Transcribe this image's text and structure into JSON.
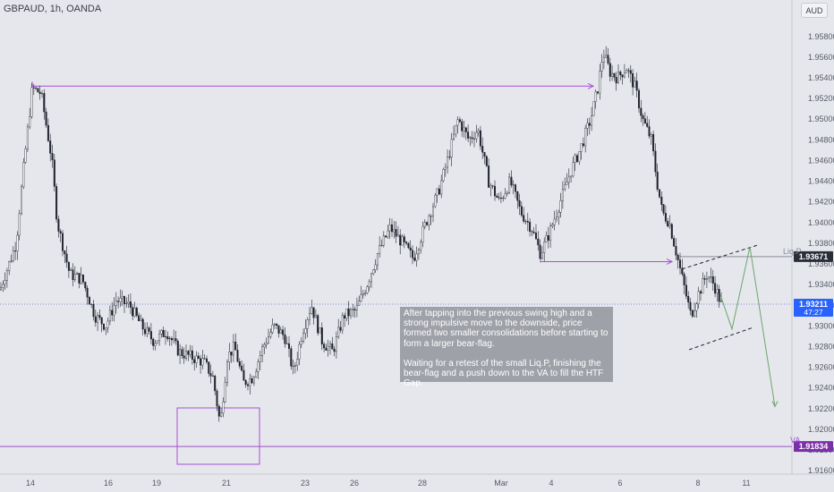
{
  "header": {
    "symbol": "GBPAUD, 1h, OANDA",
    "currency": "AUD"
  },
  "annotation": {
    "text": "After tapping into the previous swing  high and  a strong impulsive move to the downside, price formed two smaller consolidations before starting to form a larger bear-flag.\n\nWaiting for a retest of the small Liq.P, finishing the bear-flag and a push down to the VA to fill the  HTF Gap."
  },
  "labels": {
    "liq": "Liq.P",
    "va": "VA"
  },
  "chart_data": {
    "type": "candlestick",
    "y_axis": {
      "range": [
        1.913,
        1.961
      ],
      "ticks": [
        "1.95800",
        "1.95600",
        "1.95400",
        "1.95200",
        "1.95000",
        "1.94800",
        "1.94600",
        "1.94400",
        "1.94200",
        "1.94000",
        "1.93800",
        "1.93600",
        "1.93400",
        "1.93200",
        "1.93000",
        "1.92800",
        "1.92600",
        "1.92400",
        "1.92200",
        "1.92000",
        "1.91800",
        "1.91600"
      ]
    },
    "x_axis": {
      "ticks": [
        "14",
        "16",
        "19",
        "21",
        "23",
        "26",
        "28",
        "Mar",
        "4",
        "6",
        "8",
        "11"
      ]
    },
    "price_badges": [
      {
        "label": "1.93671",
        "value": 1.93671,
        "color": "#2a2e39"
      },
      {
        "label": "1.93211",
        "sub": "47:27",
        "value": 1.93211,
        "color": "#2962ff"
      },
      {
        "label": "1.91834",
        "value": 1.91834,
        "color": "#7b2fa8"
      }
    ],
    "levels": [
      {
        "name": "previous swing high",
        "value": 1.9532
      },
      {
        "name": "Liq.P",
        "value": 1.93671
      },
      {
        "name": "VA",
        "value": 1.91834
      },
      {
        "name": "current price",
        "value": 1.93211
      }
    ],
    "path": [
      [
        0,
        1.9335
      ],
      [
        18,
        1.938
      ],
      [
        26,
        1.945
      ],
      [
        36,
        1.953
      ],
      [
        46,
        1.9525
      ],
      [
        58,
        1.946
      ],
      [
        64,
        1.94
      ],
      [
        78,
        1.935
      ],
      [
        92,
        1.9345
      ],
      [
        106,
        1.931
      ],
      [
        118,
        1.93
      ],
      [
        130,
        1.9325
      ],
      [
        145,
        1.932
      ],
      [
        158,
        1.93
      ],
      [
        172,
        1.9285
      ],
      [
        186,
        1.9295
      ],
      [
        200,
        1.9275
      ],
      [
        214,
        1.927
      ],
      [
        228,
        1.9265
      ],
      [
        238,
        1.925
      ],
      [
        246,
        1.9205
      ],
      [
        254,
        1.927
      ],
      [
        262,
        1.928
      ],
      [
        272,
        1.9245
      ],
      [
        282,
        1.925
      ],
      [
        294,
        1.928
      ],
      [
        306,
        1.93
      ],
      [
        318,
        1.929
      ],
      [
        328,
        1.9255
      ],
      [
        338,
        1.9295
      ],
      [
        348,
        1.932
      ],
      [
        360,
        1.9285
      ],
      [
        372,
        1.9275
      ],
      [
        384,
        1.931
      ],
      [
        398,
        1.9315
      ],
      [
        410,
        1.934
      ],
      [
        422,
        1.937
      ],
      [
        436,
        1.9395
      ],
      [
        450,
        1.938
      ],
      [
        462,
        1.9365
      ],
      [
        476,
        1.94
      ],
      [
        490,
        1.943
      ],
      [
        500,
        1.946
      ],
      [
        512,
        1.95
      ],
      [
        524,
        1.948
      ],
      [
        534,
        1.949
      ],
      [
        546,
        1.944
      ],
      [
        558,
        1.942
      ],
      [
        570,
        1.944
      ],
      [
        582,
        1.941
      ],
      [
        594,
        1.9395
      ],
      [
        604,
        1.937
      ],
      [
        614,
        1.939
      ],
      [
        626,
        1.942
      ],
      [
        638,
        1.945
      ],
      [
        648,
        1.947
      ],
      [
        660,
        1.95
      ],
      [
        668,
        1.953
      ],
      [
        674,
        1.9565
      ],
      [
        682,
        1.9545
      ],
      [
        690,
        1.954
      ],
      [
        700,
        1.955
      ],
      [
        710,
        1.953
      ],
      [
        718,
        1.95
      ],
      [
        728,
        1.948
      ],
      [
        734,
        1.944
      ],
      [
        740,
        1.941
      ],
      [
        748,
        1.94
      ],
      [
        756,
        1.937
      ],
      [
        764,
        1.934
      ],
      [
        772,
        1.931
      ],
      [
        780,
        1.933
      ],
      [
        790,
        1.935
      ],
      [
        798,
        1.934
      ],
      [
        806,
        1.9321
      ]
    ],
    "forecast": [
      [
        805,
        1.933
      ],
      [
        818,
        1.9297
      ],
      [
        838,
        1.93765
      ],
      [
        866,
        1.9222
      ]
    ]
  }
}
